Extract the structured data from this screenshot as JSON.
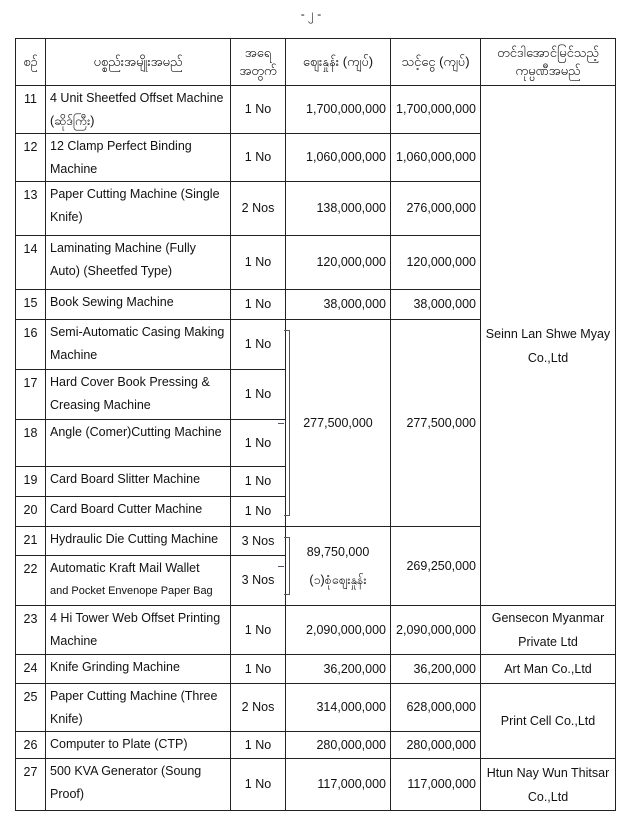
{
  "page_number": "- ၂ -",
  "headers": {
    "no": "စဉ်",
    "item": "ပစ္စည်းအမျိုးအမည်",
    "qty": "အရေ အတွက်",
    "price": "ဈေးနှုန်း (ကျပ်)",
    "total": "သင့်ငွေ (ကျပ်)",
    "company": "တင်ဒါအောင်မြင်သည့် ကုမ္ပဏီအမည်"
  },
  "rows": [
    {
      "no": "11",
      "item": "4 Unit Sheetfed Offset Machine (ဆိုဒ်ကြီး)",
      "qty": "1 No",
      "price": "1,700,000,000",
      "total": "1,700,000,000"
    },
    {
      "no": "12",
      "item": "12 Clamp Perfect Binding Machine",
      "qty": "1 No",
      "price": "1,060,000,000",
      "total": "1,060,000,000"
    },
    {
      "no": "13",
      "item": "Paper Cutting Machine (Single Knife)",
      "qty": "2 Nos",
      "price": "138,000,000",
      "total": "276,000,000"
    },
    {
      "no": "14",
      "item": "Laminating Machine (Fully Auto) (Sheetfed Type)",
      "qty": "1 No",
      "price": "120,000,000",
      "total": "120,000,000"
    },
    {
      "no": "15",
      "item": "Book Sewing Machine",
      "qty": "1 No",
      "price": "38,000,000",
      "total": "38,000,000"
    },
    {
      "no": "16",
      "item": "Semi-Automatic Casing Making Machine",
      "qty": "1 No"
    },
    {
      "no": "17",
      "item": "Hard Cover Book Pressing & Creasing Machine",
      "qty": "1 No"
    },
    {
      "no": "18",
      "item": "Angle (Comer)Cutting Machine",
      "qty": "1 No"
    },
    {
      "no": "19",
      "item": "Card Board Slitter Machine",
      "qty": "1 No"
    },
    {
      "no": "20",
      "item": "Card Board Cutter Machine",
      "qty": "1 No"
    },
    {
      "no": "21",
      "item": "Hydraulic Die Cutting Machine",
      "qty": "3 Nos"
    },
    {
      "no": "22",
      "item": "Automatic Kraft Mail Wallet",
      "item2": "and Pocket Envenope Paper Bag",
      "qty": "3 Nos"
    },
    {
      "no": "23",
      "item": "4 Hi Tower Web Offset Printing Machine",
      "qty": "1 No",
      "price": "2,090,000,000",
      "total": "2,090,000,000"
    },
    {
      "no": "24",
      "item": "Knife Grinding Machine",
      "qty": "1 No",
      "price": "36,200,000",
      "total": "36,200,000"
    },
    {
      "no": "25",
      "item": "Paper Cutting Machine (Three Knife)",
      "qty": "2 Nos",
      "price": "314,000,000",
      "total": "628,000,000"
    },
    {
      "no": "26",
      "item": "Computer to Plate (CTP)",
      "qty": "1 No",
      "price": "280,000,000",
      "total": "280,000,000"
    },
    {
      "no": "27",
      "item": "500 KVA Generator (Soung Proof)",
      "qty": "1 No",
      "price": "117,000,000",
      "total": "117,000,000"
    }
  ],
  "groups": {
    "g16_20": {
      "price": "277,500,000",
      "total": "277,500,000"
    },
    "g21_22": {
      "price": "89,750,000",
      "price_note": "(၁)စုံဈေးနှုန်း",
      "total": "269,250,000"
    }
  },
  "companies": {
    "seinn": "Seinn Lan Shwe Myay Co.,Ltd",
    "gensecon": "Gensecon Myanmar Private Ltd",
    "artman": "Art Man Co.,Ltd",
    "printcell": "Print Cell Co.,Ltd",
    "htun": "Htun Nay Wun Thitsar Co.,Ltd"
  }
}
